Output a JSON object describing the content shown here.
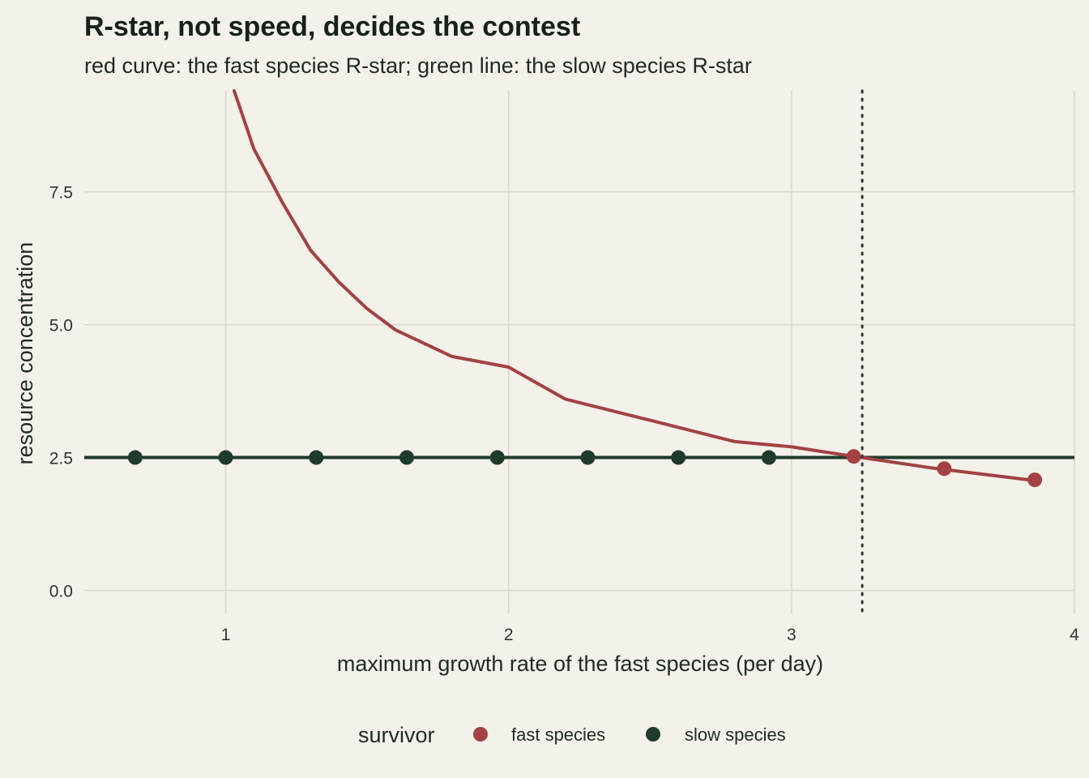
{
  "chart_data": {
    "type": "line",
    "title": "R-star, not speed, decides the contest",
    "subtitle": "red curve: the fast species R-star; green line: the slow species R-star",
    "xlabel": "maximum growth rate of the fast species (per day)",
    "ylabel": "resource concentration",
    "xlim": [
      0.5,
      4.0
    ],
    "ylim": [
      -0.45,
      9.4
    ],
    "x_ticks": [
      1,
      2,
      3,
      4
    ],
    "x_tick_labels": [
      "1",
      "2",
      "3",
      "4"
    ],
    "y_ticks": [
      0,
      2.5,
      5,
      7.5
    ],
    "y_tick_labels": [
      "0.0",
      "2.5",
      "5.0",
      "7.5"
    ],
    "grid": true,
    "colors": {
      "fast": "#a34143",
      "slow": "#1e3b2c",
      "background": "#f3f1ea"
    },
    "fast_curve": {
      "x": [
        1.03,
        1.1,
        1.2,
        1.3,
        1.4,
        1.5,
        1.6,
        1.8,
        2.0,
        2.2,
        2.5,
        2.8,
        3.0,
        3.22,
        3.5,
        3.84
      ],
      "y": [
        9.4,
        8.3,
        7.3,
        6.4,
        5.8,
        5.3,
        4.9,
        4.4,
        4.2,
        3.6,
        3.2,
        2.8,
        2.7,
        2.52,
        2.3,
        2.08
      ]
    },
    "slow_line": {
      "y": 2.5
    },
    "threshold_x": 3.25,
    "series": [
      {
        "name": "fast species",
        "x": [
          3.22,
          3.54,
          3.86
        ],
        "y": [
          2.52,
          2.29,
          2.08
        ]
      },
      {
        "name": "slow species",
        "x": [
          0.68,
          1.0,
          1.32,
          1.64,
          1.96,
          2.28,
          2.6,
          2.92
        ],
        "y": [
          2.5,
          2.5,
          2.5,
          2.5,
          2.5,
          2.5,
          2.5,
          2.5
        ]
      }
    ],
    "legend": {
      "title": "survivor",
      "placement": "bottom",
      "items": [
        "fast species",
        "slow species"
      ]
    }
  }
}
